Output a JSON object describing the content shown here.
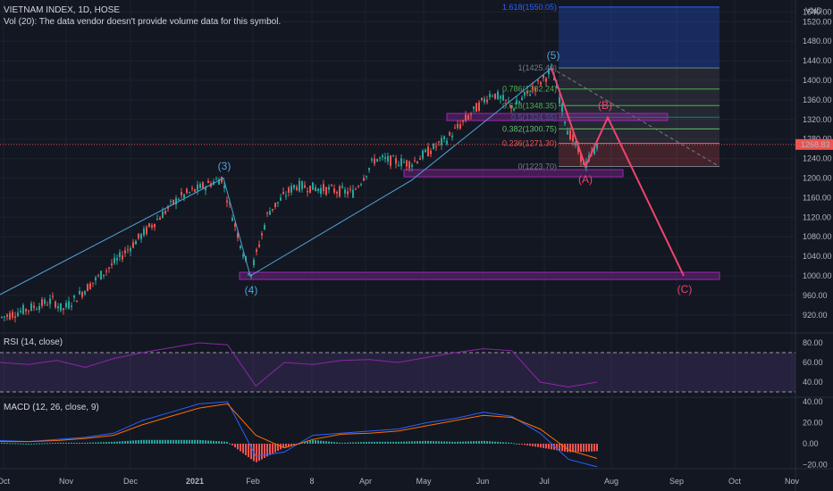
{
  "header": {
    "symbol_line": "VIETNAM INDEX, 1D, HOSE",
    "volume_line": "Vol (20): The data vendor doesn't provide volume data for this symbol."
  },
  "price_axis": {
    "currency": "VND",
    "ticks": [
      "1540.00",
      "1520.00",
      "1480.00",
      "1440.00",
      "1400.00",
      "1360.00",
      "1320.00",
      "1280.00",
      "1240.00",
      "1200.00",
      "1160.00",
      "1120.00",
      "1080.00",
      "1040.00",
      "1000.00",
      "960.00",
      "920.00"
    ],
    "last_price": "1268.83"
  },
  "rsi": {
    "title": "RSI (14, close)",
    "ticks": [
      "80.00",
      "60.00",
      "40.00"
    ],
    "upper_band": 70,
    "lower_band": 30
  },
  "macd": {
    "title": "MACD (12, 26, close, 9)",
    "ticks": [
      "40.00",
      "20.00",
      "0.00",
      "−20.00"
    ]
  },
  "time_axis": {
    "labels": [
      "Oct",
      "Nov",
      "Dec",
      "2021",
      "Feb",
      "8",
      "Apr",
      "May",
      "Jun",
      "Jul",
      "Aug",
      "Sep",
      "Oct",
      "Nov"
    ]
  },
  "colors": {
    "background": "#131722",
    "up": "#26a69a",
    "down": "#ef5350",
    "wave_impulse": "#4fa3d8",
    "wave_correction": "#f0436e",
    "zone": "#9c27b0",
    "rsi_line": "#8e24aa",
    "macd_line": "#2962ff",
    "signal_line": "#ff6d00"
  },
  "annotations": {
    "wave_labels": [
      "(3)",
      "(4)",
      "(5)",
      "(A)",
      "(B)",
      "(C)"
    ],
    "fib_labels": [
      "1.618(1550.05)",
      "1(1425.40)",
      "0.786(1382.24)",
      "0.618(1348.35)",
      "0.5(1324.55)",
      "0.382(1300.75)",
      "0.236(1271.30)",
      "0(1223.70)"
    ]
  },
  "chart_data": [
    {
      "type": "candlestick",
      "title": "VIETNAM INDEX, 1D, HOSE",
      "ylim": [
        900,
        1560
      ],
      "x": [
        "Oct",
        "Nov",
        "Dec",
        "2021",
        "Feb",
        "8",
        "Apr",
        "May",
        "Jun",
        "Jul",
        "Aug",
        "Sep",
        "Oct",
        "Nov"
      ],
      "series": [
        {
          "name": "VIETNAM INDEX",
          "points": [
            {
              "x": "Oct",
              "y": 910
            },
            {
              "x": "Oct",
              "y": 935
            },
            {
              "x": "Nov",
              "y": 945
            },
            {
              "x": "Nov",
              "y": 970
            },
            {
              "x": "Dec",
              "y": 1010
            },
            {
              "x": "Dec",
              "y": 1070
            },
            {
              "x": "2021",
              "y": 1150
            },
            {
              "x": "2021",
              "y": 1195
            },
            {
              "x": "Feb",
              "y": 1000
            },
            {
              "x": "Feb",
              "y": 1110
            },
            {
              "x": "8",
              "y": 1165
            },
            {
              "x": "8",
              "y": 1180
            },
            {
              "x": "Apr",
              "y": 1195
            },
            {
              "x": "Apr",
              "y": 1250
            },
            {
              "x": "May",
              "y": 1240
            },
            {
              "x": "May",
              "y": 1290
            },
            {
              "x": "Jun",
              "y": 1350
            },
            {
              "x": "Jun",
              "y": 1380
            },
            {
              "x": "Jul",
              "y": 1420
            },
            {
              "x": "Jul",
              "y": 1300
            },
            {
              "x": "Jul",
              "y": 1225
            },
            {
              "x": "Jul",
              "y": 1268.83
            }
          ]
        }
      ],
      "projection": [
        {
          "label": "(A)",
          "value": 1223.7
        },
        {
          "label": "(B)",
          "value": 1324
        },
        {
          "label": "(C)",
          "value": 1000
        }
      ],
      "fibonacci": [
        {
          "level": 1.618,
          "value": 1550.05
        },
        {
          "level": 1,
          "value": 1425.4
        },
        {
          "level": 0.786,
          "value": 1382.24
        },
        {
          "level": 0.618,
          "value": 1348.35
        },
        {
          "level": 0.5,
          "value": 1324.55
        },
        {
          "level": 0.382,
          "value": 1300.75
        },
        {
          "level": 0.236,
          "value": 1271.3
        },
        {
          "level": 0,
          "value": 1223.7
        }
      ],
      "support_zones": [
        1000,
        1210,
        1325
      ],
      "last_price": 1268.83
    },
    {
      "type": "line",
      "title": "RSI (14, close)",
      "ylim": [
        20,
        90
      ],
      "bands": [
        30,
        70
      ],
      "series": [
        {
          "name": "RSI (14, close)",
          "values": [
            60,
            58,
            62,
            55,
            64,
            70,
            75,
            80,
            78,
            36,
            60,
            58,
            62,
            63,
            60,
            65,
            70,
            74,
            72,
            40,
            35,
            40
          ]
        }
      ]
    },
    {
      "type": "line",
      "title": "MACD (12, 26, close, 9)",
      "ylim": [
        -25,
        45
      ],
      "series": [
        {
          "name": "MACD",
          "values": [
            3,
            2,
            4,
            6,
            10,
            22,
            30,
            38,
            40,
            -12,
            -8,
            8,
            10,
            12,
            14,
            20,
            24,
            30,
            26,
            10,
            -15,
            -22
          ]
        },
        {
          "name": "Signal",
          "values": [
            2,
            2,
            3,
            5,
            8,
            18,
            26,
            34,
            38,
            8,
            -4,
            4,
            9,
            10,
            12,
            17,
            22,
            27,
            25,
            14,
            -6,
            -14
          ]
        }
      ]
    }
  ]
}
